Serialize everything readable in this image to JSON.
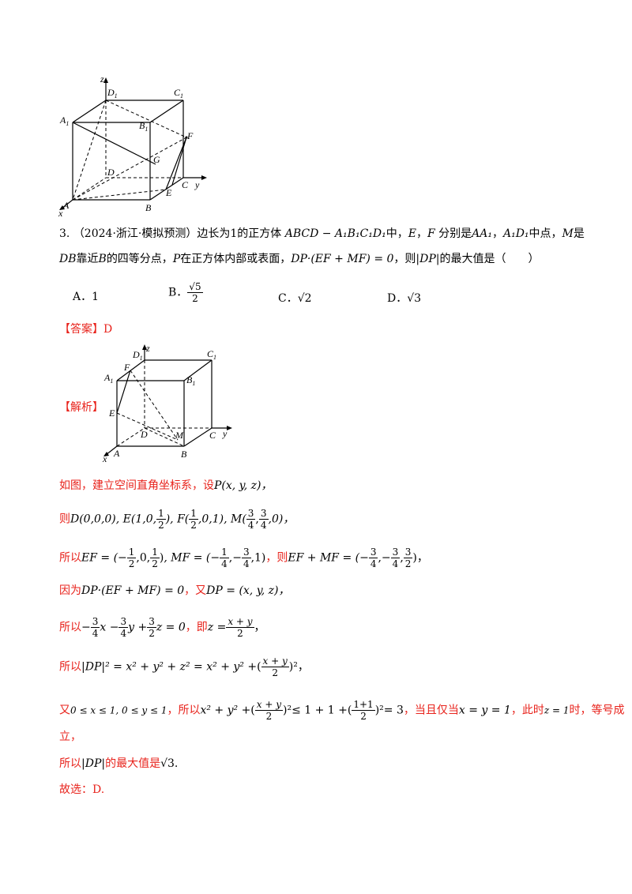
{
  "figure1": {
    "labels": {
      "z": "z",
      "D1": "D",
      "C1": "C",
      "A1": "A",
      "B1": "B",
      "F": "F",
      "G": "G",
      "D": "D",
      "C": "C",
      "y": "y",
      "E": "E",
      "A": "A",
      "B": "B",
      "x": "x",
      "sub1": "1"
    }
  },
  "question": {
    "number": "3.",
    "source": "（2024·浙江·模拟预测）边长为1的正方体",
    "cube_name": "ABCD − A₁B₁C₁D₁",
    "text_mid": "中，",
    "E": "E",
    "comma": "，",
    "F": "F",
    "fenbie": "分别是",
    "AA1": "AA₁",
    "A1D1": "A₁D₁",
    "midpoint": "中点，",
    "M": "M",
    "is": "是",
    "line2_DB": "DB",
    "kaojin": "靠近",
    "B": "B",
    "quarter": "的四等分点，",
    "P": "P",
    "inside": "在正方体内部或表面，",
    "cond": "DP·(EF + MF) = 0",
    "ze": "，则",
    "DPabs": "|DP|",
    "maxval": "的最大值是（　　）",
    "options": [
      {
        "key": "A．",
        "val": "1"
      },
      {
        "key": "B．",
        "val_num": "√5",
        "val_den": "2"
      },
      {
        "key": "C．",
        "val": "√2"
      },
      {
        "key": "D．",
        "val": "√3"
      }
    ]
  },
  "answer": {
    "label": "【答案】",
    "value": "D"
  },
  "jiexi": {
    "label": "【解析】"
  },
  "figure2": {
    "labels": {
      "D1": "D",
      "z": "z",
      "C1": "C",
      "A1": "A",
      "F": "F",
      "B1": "B",
      "E": "E",
      "D": "D",
      "M": "M",
      "C": "C",
      "y": "y",
      "A": "A",
      "B": "B",
      "x": "x",
      "sub1": "1"
    }
  },
  "solution": {
    "l1_a": "如图，建立空间直角坐标系，设",
    "l1_b": "P(x, y, z)，",
    "l2_a": "则",
    "l2_b": "D(0,0,0), E(1,0,",
    "l2_c": "), F(",
    "l2_d": ",0,1), M(",
    "l2_e": ",0)，",
    "l3_a": "所以",
    "l3_b": "EF = (−",
    "l3_c": ", MF = (−",
    "l3_d": "，则",
    "l3_e": "EF + MF = (−",
    "l4_a": "因为",
    "l4_b": "DP·(EF + MF) = 0",
    "l4_c": "，又",
    "l4_d": "DP = (x, y, z)，",
    "l5_a": "所以",
    "l5_b": "x −",
    "l5_c": "y +",
    "l5_d": "z = 0",
    "l5_e": "，即",
    "l5_f": "z =",
    "l6_a": "所以",
    "l6_b": "|DP|² = x² + y² + z² = x² + y² +",
    "l7_a": "又",
    "l7_b": "0 ≤ x ≤ 1, 0 ≤ y ≤ 1",
    "l7_c": "，所以",
    "l7_d": "x² + y² +",
    "l7_e": "≤ 1 + 1 +",
    "l7_f": "= 3",
    "l7_g": "，当且仅当",
    "l7_h": "x = y = 1",
    "l7_i": "，此时",
    "l7_j": "z = 1",
    "l7_k": "时，等号成",
    "l8": "立，",
    "l9_a": "所以",
    "l9_b": "|DP|",
    "l9_c": "的最大值是",
    "l9_d": "√3",
    "l9_e": ".",
    "l10": "故选：D."
  },
  "fracs": {
    "half_n": "1",
    "half_d": "2",
    "three_n": "3",
    "four_d": "4",
    "xy_n": "x + y",
    "two_d": "2",
    "one1_n": "1+1",
    "neg_half": "1",
    "neg_quarter": "1",
    "mf_c": "1",
    "sum_z_n": "3"
  },
  "colors": {
    "red": "#e8231c",
    "black": "#000000"
  }
}
